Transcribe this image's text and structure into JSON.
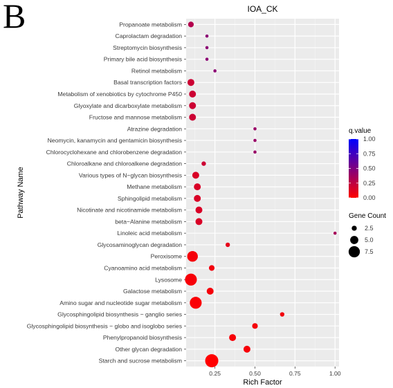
{
  "panel_label": "B",
  "chart_data": {
    "type": "scatter",
    "title": "IOA_CK",
    "xlabel": "Rich Factor",
    "ylabel": "Pathway Name",
    "xlim": [
      0.07,
      1.025
    ],
    "xticks": [
      0.25,
      0.5,
      0.75,
      1.0
    ],
    "xtick_labels": [
      "0.25",
      "0.50",
      "0.75",
      "1.00"
    ],
    "grid": true,
    "legend_position": "right",
    "color_legend": {
      "title": "q.value",
      "ticks": [
        "1.00",
        "0.75",
        "0.50",
        "0.25",
        "0.00"
      ],
      "low_color": "#ff0000",
      "high_color": "#0000ff"
    },
    "size_legend": {
      "title": "Gene Count",
      "labels": [
        "2.5",
        "5.0",
        "7.5"
      ],
      "values": [
        2.5,
        5.0,
        7.5
      ]
    },
    "points": [
      {
        "pathway": "Propanoate metabolism",
        "rich_factor": 0.1,
        "gene_count": 3,
        "q_value": 0.3
      },
      {
        "pathway": "Caprolactam degradation",
        "rich_factor": 0.2,
        "gene_count": 1,
        "q_value": 0.45
      },
      {
        "pathway": "Streptomycin biosynthesis",
        "rich_factor": 0.2,
        "gene_count": 1,
        "q_value": 0.45
      },
      {
        "pathway": "Primary bile acid biosynthesis",
        "rich_factor": 0.2,
        "gene_count": 1,
        "q_value": 0.45
      },
      {
        "pathway": "Retinol metabolism",
        "rich_factor": 0.25,
        "gene_count": 1,
        "q_value": 0.45
      },
      {
        "pathway": "Basal transcription factors",
        "rich_factor": 0.1,
        "gene_count": 4,
        "q_value": 0.2
      },
      {
        "pathway": "Metabolism of xenobiotics by cytochrome P450",
        "rich_factor": 0.11,
        "gene_count": 4,
        "q_value": 0.2
      },
      {
        "pathway": "Glyoxylate and dicarboxylate metabolism",
        "rich_factor": 0.11,
        "gene_count": 4,
        "q_value": 0.2
      },
      {
        "pathway": "Fructose and mannose metabolism",
        "rich_factor": 0.11,
        "gene_count": 4,
        "q_value": 0.2
      },
      {
        "pathway": "Atrazine degradation",
        "rich_factor": 0.5,
        "gene_count": 1,
        "q_value": 0.4
      },
      {
        "pathway": "Neomycin, kanamycin and gentamicin biosynthesis",
        "rich_factor": 0.5,
        "gene_count": 1,
        "q_value": 0.4
      },
      {
        "pathway": "Chlorocyclohexane and chlorobenzene degradation",
        "rich_factor": 0.5,
        "gene_count": 1,
        "q_value": 0.4
      },
      {
        "pathway": "Chloroalkane and chloroalkene degradation",
        "rich_factor": 0.18,
        "gene_count": 2,
        "q_value": 0.2
      },
      {
        "pathway": "Various types of N−glycan biosynthesis",
        "rich_factor": 0.13,
        "gene_count": 4,
        "q_value": 0.15
      },
      {
        "pathway": "Methane metabolism",
        "rich_factor": 0.14,
        "gene_count": 4,
        "q_value": 0.15
      },
      {
        "pathway": "Sphingolipid metabolism",
        "rich_factor": 0.14,
        "gene_count": 4,
        "q_value": 0.15
      },
      {
        "pathway": "Nicotinate and nicotinamide metabolism",
        "rich_factor": 0.15,
        "gene_count": 4,
        "q_value": 0.15
      },
      {
        "pathway": "beta−Alanine metabolism",
        "rich_factor": 0.15,
        "gene_count": 4,
        "q_value": 0.15
      },
      {
        "pathway": "Linoleic acid metabolism",
        "rich_factor": 1.0,
        "gene_count": 1,
        "q_value": 0.35
      },
      {
        "pathway": "Glycosaminoglycan degradation",
        "rich_factor": 0.33,
        "gene_count": 2,
        "q_value": 0.1
      },
      {
        "pathway": "Peroxisome",
        "rich_factor": 0.11,
        "gene_count": 7,
        "q_value": 0.04
      },
      {
        "pathway": "Cyanoamino acid metabolism",
        "rich_factor": 0.23,
        "gene_count": 3,
        "q_value": 0.05
      },
      {
        "pathway": "Lysosome",
        "rich_factor": 0.1,
        "gene_count": 8,
        "q_value": 0.03
      },
      {
        "pathway": "Galactose metabolism",
        "rich_factor": 0.22,
        "gene_count": 4,
        "q_value": 0.04
      },
      {
        "pathway": "Amino sugar and nucleotide sugar metabolism",
        "rich_factor": 0.13,
        "gene_count": 8,
        "q_value": 0.02
      },
      {
        "pathway": "Glycosphingolipid biosynthesis − ganglio series",
        "rich_factor": 0.67,
        "gene_count": 2,
        "q_value": 0.05
      },
      {
        "pathway": "Glycosphingolipid biosynthesis − globo and isoglobo series",
        "rich_factor": 0.5,
        "gene_count": 3,
        "q_value": 0.04
      },
      {
        "pathway": "Phenylpropanoid biosynthesis",
        "rich_factor": 0.36,
        "gene_count": 4,
        "q_value": 0.03
      },
      {
        "pathway": "Other glycan degradation",
        "rich_factor": 0.45,
        "gene_count": 4,
        "q_value": 0.03
      },
      {
        "pathway": "Starch and sucrose metabolism",
        "rich_factor": 0.23,
        "gene_count": 9,
        "q_value": 0.0
      }
    ]
  }
}
